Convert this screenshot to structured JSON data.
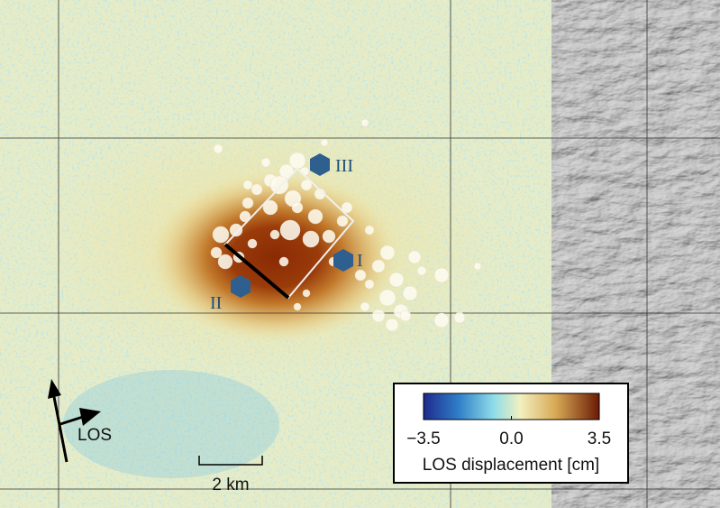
{
  "map": {
    "markers": [
      {
        "label": "III"
      },
      {
        "label": "I"
      },
      {
        "label": "II"
      }
    ],
    "los_label": "LOS",
    "scale_bar": "2 km",
    "colorbar": {
      "title": "LOS displacement [cm]",
      "lim": [
        -3.5,
        3.5
      ],
      "ticks": [
        {
          "value": -3.5,
          "label": "−3.5"
        },
        {
          "value": 0,
          "label": "0.0"
        },
        3.5
      ]
    }
  }
}
